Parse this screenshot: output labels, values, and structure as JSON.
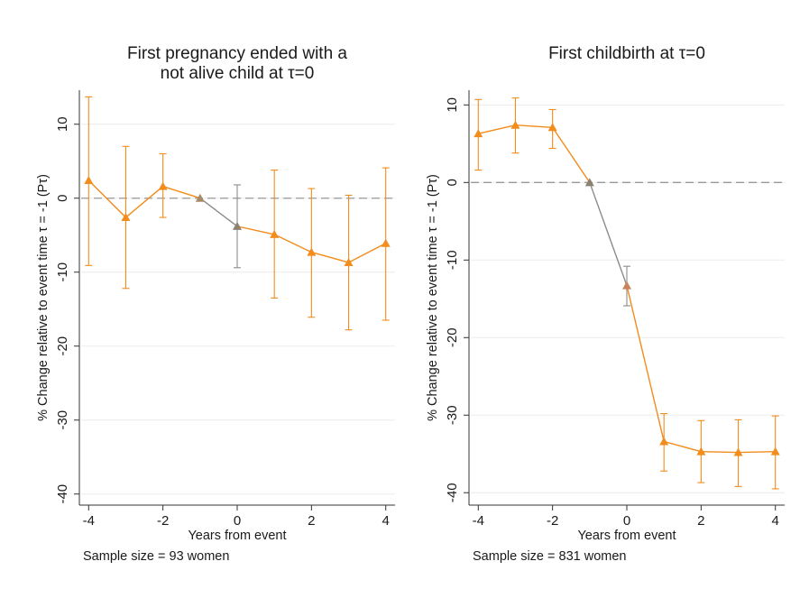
{
  "chart_data": [
    {
      "type": "line",
      "title": [
        "First pregnancy ended with a",
        "not alive child at τ=0"
      ],
      "x_label": "Years from event",
      "y_label": "% Change relative to event time τ = -1 (Pτ)",
      "note": "Sample size = 93 women",
      "x": [
        -4,
        -3,
        -2,
        -1,
        0,
        1,
        2,
        3,
        4
      ],
      "values": [
        2.4,
        -2.6,
        1.6,
        0,
        -3.8,
        -4.9,
        -7.3,
        -8.7,
        -6.1
      ],
      "ci_high": [
        13.7,
        7.0,
        6.0,
        null,
        1.8,
        3.8,
        1.3,
        0.4,
        4.1
      ],
      "ci_low": [
        -9.1,
        -12.2,
        -2.6,
        null,
        -9.4,
        -13.5,
        -16.1,
        -17.8,
        -16.5
      ],
      "color": "#f28c1c",
      "marker_colors": [
        "#f28c1c",
        "#f28c1c",
        "#f28c1c",
        "#a88a68",
        "#8c8070",
        "#f28c1c",
        "#f28c1c",
        "#f28c1c",
        "#f28c1c"
      ],
      "segment_colors": [
        "#f28c1c",
        "#f28c1c",
        "#f28c1c",
        "#8c8c8c",
        "#f28c1c",
        "#f28c1c",
        "#f28c1c",
        "#f28c1c"
      ],
      "ci_colors": [
        "#f28c1c",
        "#f28c1c",
        "#f28c1c",
        null,
        "#8c8c8c",
        "#f28c1c",
        "#f28c1c",
        "#f28c1c",
        "#f28c1c"
      ],
      "xlim": [
        -4.25,
        4.25
      ],
      "xticks": [
        -4,
        -2,
        0,
        2,
        4
      ],
      "ylim": [
        -41.5,
        14.6
      ],
      "yticks": [
        10,
        0,
        -10,
        -20,
        -30,
        -40
      ],
      "ref_line": 0,
      "grid": true
    },
    {
      "type": "line",
      "title": [
        "First childbirth at τ=0"
      ],
      "x_label": "Years from event",
      "y_label": "% Change relative to event time τ = -1 (Pτ)",
      "note": "Sample size = 831 women",
      "x": [
        -4,
        -3,
        -2,
        -1,
        0,
        1,
        2,
        3,
        4
      ],
      "values": [
        6.3,
        7.4,
        7.1,
        0,
        -13.3,
        -33.4,
        -34.7,
        -34.8,
        -34.7
      ],
      "ci_high": [
        10.7,
        10.9,
        9.4,
        null,
        -10.8,
        -29.8,
        -30.7,
        -30.6,
        -30.1
      ],
      "ci_low": [
        1.6,
        3.8,
        4.4,
        null,
        -15.9,
        -37.2,
        -38.7,
        -39.2,
        -39.5
      ],
      "color": "#f28c1c",
      "marker_colors": [
        "#f28c1c",
        "#f28c1c",
        "#f28c1c",
        "#8c8070",
        "#c8845a",
        "#f28c1c",
        "#f28c1c",
        "#f28c1c",
        "#f28c1c"
      ],
      "segment_colors": [
        "#f28c1c",
        "#f28c1c",
        "#f28c1c",
        "#8c8c8c",
        "#f28c1c",
        "#f28c1c",
        "#f28c1c",
        "#f28c1c"
      ],
      "ci_colors": [
        "#f28c1c",
        "#f28c1c",
        "#f28c1c",
        null,
        "#8c8c8c",
        "#f28c1c",
        "#f28c1c",
        "#f28c1c",
        "#f28c1c"
      ],
      "xlim": [
        -4.25,
        4.25
      ],
      "xticks": [
        -4,
        -2,
        0,
        2,
        4
      ],
      "ylim": [
        -41.6,
        11.9
      ],
      "yticks": [
        10,
        0,
        -10,
        -20,
        -30,
        -40
      ],
      "ref_line": 0,
      "grid": true
    }
  ]
}
